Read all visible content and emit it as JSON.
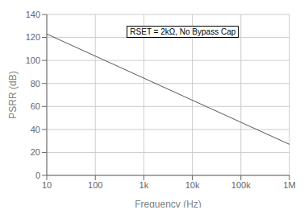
{
  "chart_data": {
    "type": "line",
    "xlabel": "Frequency (Hz)",
    "ylabel": "PSRR (dB)",
    "annotation": "RSET = 2kΩ, No Bypass Cap",
    "x": [
      10,
      1000000
    ],
    "values": [
      123,
      27
    ],
    "color": "#555555",
    "log": "x",
    "xlim": [
      10,
      1000000
    ],
    "ylim": [
      0,
      140
    ],
    "xticks": [
      10,
      100,
      {
        "value": 1000,
        "label": "1k"
      },
      {
        "value": 10000,
        "label": "10k"
      },
      {
        "value": 100000,
        "label": "100k"
      },
      {
        "value": 1000000,
        "label": "1M"
      }
    ],
    "yticks": [
      0,
      20,
      40,
      60,
      80,
      100,
      120,
      140
    ],
    "grid": true
  }
}
